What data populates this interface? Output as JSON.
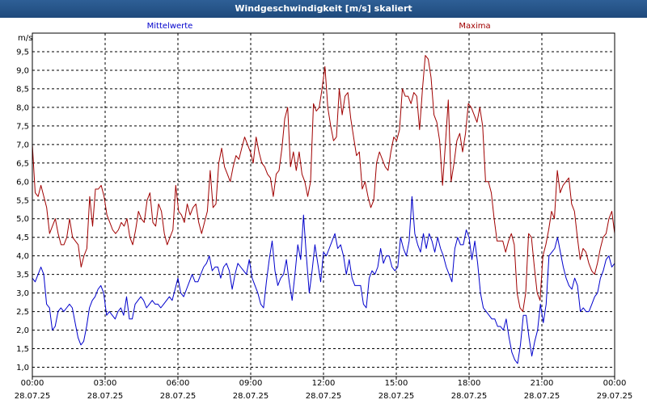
{
  "window": {
    "title": "Windgeschwindigkeit [m/s] skaliert"
  },
  "chart_data": {
    "type": "line",
    "title": "Windgeschwindigkeit [m/s] skaliert",
    "ylabel": "m/s",
    "ylim": [
      0.75,
      10.0
    ],
    "yticks": [
      1.0,
      1.5,
      2.0,
      2.5,
      3.0,
      3.5,
      4.0,
      4.5,
      5.0,
      5.5,
      6.0,
      6.5,
      7.0,
      7.5,
      8.0,
      8.5,
      9.0,
      9.5
    ],
    "ytick_labels": [
      "1,0",
      "1,5",
      "2,0",
      "2,5",
      "3,0",
      "3,5",
      "4,0",
      "4,5",
      "5,0",
      "5,5",
      "6,0",
      "6,5",
      "7,0",
      "7,5",
      "8,0",
      "8,5",
      "9,0",
      "9,5"
    ],
    "xlim_hours": [
      0,
      24
    ],
    "xticks": [
      {
        "hour": 0,
        "time": "00:00",
        "date": "28.07.25"
      },
      {
        "hour": 3,
        "time": "03:00",
        "date": "28.07.25"
      },
      {
        "hour": 6,
        "time": "06:00",
        "date": "28.07.25"
      },
      {
        "hour": 9,
        "time": "09:00",
        "date": "28.07.25"
      },
      {
        "hour": 12,
        "time": "12:00",
        "date": "28.07.25"
      },
      {
        "hour": 15,
        "time": "15:00",
        "date": "28.07.25"
      },
      {
        "hour": 18,
        "time": "18:00",
        "date": "28.07.25"
      },
      {
        "hour": 21,
        "time": "21:00",
        "date": "28.07.25"
      },
      {
        "hour": 24,
        "time": "00:00",
        "date": "29.07.25"
      }
    ],
    "grid": true,
    "series": [
      {
        "name": "Mittelwerte",
        "color": "#0000cc",
        "values": [
          3.4,
          3.3,
          3.5,
          3.7,
          3.5,
          2.7,
          2.6,
          2.0,
          2.1,
          2.5,
          2.6,
          2.5,
          2.6,
          2.7,
          2.6,
          2.2,
          1.8,
          1.6,
          1.7,
          2.1,
          2.6,
          2.8,
          2.9,
          3.1,
          3.2,
          3.0,
          2.4,
          2.5,
          2.4,
          2.3,
          2.5,
          2.6,
          2.4,
          2.9,
          2.3,
          2.3,
          2.7,
          2.8,
          2.9,
          2.8,
          2.6,
          2.7,
          2.8,
          2.7,
          2.7,
          2.6,
          2.7,
          2.8,
          2.9,
          2.8,
          3.1,
          3.4,
          3.0,
          2.9,
          3.1,
          3.3,
          3.5,
          3.3,
          3.3,
          3.5,
          3.7,
          3.8,
          4.0,
          3.6,
          3.7,
          3.7,
          3.4,
          3.7,
          3.8,
          3.6,
          3.1,
          3.5,
          3.8,
          3.7,
          3.6,
          3.5,
          3.9,
          3.4,
          3.2,
          3.0,
          2.7,
          2.6,
          3.3,
          3.9,
          4.4,
          3.6,
          3.2,
          3.4,
          3.5,
          3.9,
          3.3,
          2.8,
          3.5,
          4.3,
          3.9,
          5.1,
          4.0,
          3.0,
          3.6,
          4.3,
          3.8,
          3.3,
          4.1,
          4.0,
          4.2,
          4.4,
          4.6,
          4.2,
          4.3,
          4.0,
          3.5,
          3.9,
          3.4,
          3.2,
          3.2,
          3.2,
          2.7,
          2.6,
          3.4,
          3.6,
          3.5,
          3.7,
          4.2,
          3.8,
          4.0,
          4.0,
          3.7,
          3.6,
          3.7,
          4.5,
          4.2,
          4.0,
          4.4,
          5.6,
          4.6,
          4.3,
          4.1,
          4.6,
          4.2,
          4.6,
          4.4,
          4.1,
          4.5,
          4.2,
          4.0,
          3.7,
          3.5,
          3.3,
          4.2,
          4.5,
          4.3,
          4.3,
          4.7,
          4.5,
          3.9,
          4.4,
          3.8,
          3.0,
          2.6,
          2.5,
          2.4,
          2.3,
          2.3,
          2.1,
          2.1,
          2.0,
          2.3,
          1.8,
          1.4,
          1.2,
          1.1,
          1.6,
          2.4,
          2.4,
          1.8,
          1.3,
          1.7,
          2.0,
          2.7,
          2.2,
          2.7,
          4.0,
          4.1,
          4.2,
          4.5,
          4.1,
          3.7,
          3.4,
          3.2,
          3.1,
          3.4,
          3.2,
          2.5,
          2.6,
          2.5,
          2.5,
          2.7,
          2.9,
          3.0,
          3.4,
          3.6,
          3.9,
          4.0,
          3.7,
          3.8
        ]
      },
      {
        "name": "Maxima",
        "color": "#a00000",
        "values": [
          7.0,
          5.7,
          5.6,
          5.9,
          5.6,
          5.3,
          4.6,
          4.8,
          5.0,
          4.6,
          4.3,
          4.3,
          4.5,
          5.0,
          4.5,
          4.4,
          4.3,
          3.7,
          4.0,
          4.2,
          5.6,
          4.8,
          5.8,
          5.8,
          5.9,
          5.6,
          5.1,
          4.9,
          4.7,
          4.6,
          4.7,
          4.9,
          4.8,
          5.0,
          4.5,
          4.3,
          4.7,
          5.2,
          5.0,
          4.9,
          5.5,
          5.7,
          4.9,
          4.8,
          5.4,
          5.2,
          4.6,
          4.3,
          4.5,
          4.7,
          5.9,
          5.2,
          5.1,
          4.9,
          5.4,
          5.1,
          5.3,
          5.4,
          4.9,
          4.6,
          4.9,
          5.2,
          6.3,
          5.3,
          5.4,
          6.5,
          6.9,
          6.4,
          6.2,
          6.0,
          6.4,
          6.7,
          6.6,
          6.9,
          7.2,
          7.0,
          6.8,
          6.5,
          7.2,
          6.8,
          6.5,
          6.4,
          6.2,
          6.1,
          5.6,
          6.2,
          6.3,
          6.9,
          7.7,
          8.0,
          6.4,
          6.8,
          6.3,
          6.8,
          6.2,
          6.0,
          5.6,
          6.0,
          8.1,
          7.9,
          8.0,
          8.5,
          9.1,
          8.0,
          7.5,
          7.1,
          7.2,
          8.5,
          7.8,
          8.3,
          8.4,
          7.7,
          7.2,
          6.7,
          6.8,
          5.8,
          6.0,
          5.6,
          5.3,
          5.5,
          6.5,
          6.8,
          6.6,
          6.4,
          6.3,
          6.8,
          7.2,
          7.1,
          7.4,
          8.5,
          8.3,
          8.3,
          8.1,
          8.4,
          8.3,
          7.4,
          8.5,
          9.4,
          9.3,
          8.8,
          7.8,
          7.6,
          7.1,
          5.9,
          7.0,
          8.2,
          6.0,
          6.5,
          7.1,
          7.3,
          6.8,
          7.3,
          8.1,
          8.0,
          7.8,
          7.6,
          8.0,
          7.5,
          6.0,
          6.0,
          5.7,
          5.0,
          4.4,
          4.4,
          4.4,
          4.1,
          4.4,
          4.6,
          4.3,
          3.0,
          2.6,
          2.5,
          3.0,
          4.6,
          4.5,
          3.7,
          3.0,
          2.8,
          4.0,
          4.3,
          4.7,
          5.2,
          5.0,
          6.3,
          5.7,
          5.9,
          6.0,
          6.1,
          5.4,
          5.2,
          4.5,
          3.9,
          4.2,
          4.1,
          3.8,
          3.6,
          3.5,
          3.8,
          4.2,
          4.5,
          4.6,
          5.0,
          5.2,
          4.6
        ]
      }
    ]
  }
}
